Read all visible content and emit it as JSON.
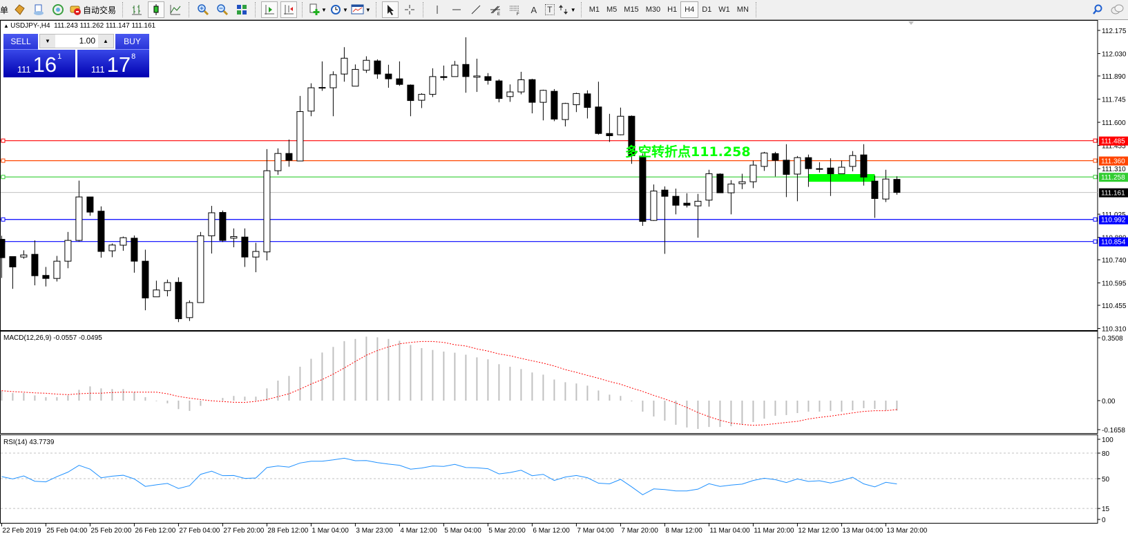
{
  "toolbar": {
    "menu_partial": "单",
    "auto_trading_label": "自动交易",
    "icons": [
      "market-watch-icon",
      "data-window-icon",
      "navigator-icon",
      "signals-icon",
      "auto-trading-icon",
      "bar-chart-icon",
      "candlestick-icon",
      "line-chart-icon",
      "zoom-in-icon",
      "zoom-out-icon",
      "tile-windows-icon",
      "auto-scroll-icon",
      "chart-shift-icon",
      "new-order-icon",
      "periods-icon",
      "templates-icon",
      "cursor-icon",
      "crosshair-icon",
      "vertical-line-icon",
      "horizontal-line-icon",
      "trendline-icon",
      "fibonacci-icon",
      "channel-icon",
      "text-icon",
      "text-label-icon",
      "arrows-icon",
      "search-icon",
      "chat-icon"
    ],
    "text_tool": "A",
    "label_tool": "T",
    "timeframes": [
      "M1",
      "M5",
      "M15",
      "M30",
      "H1",
      "H4",
      "D1",
      "W1",
      "MN"
    ],
    "selected_timeframe": "H4"
  },
  "chart": {
    "header": "USDJPY-,H4  111.243 111.262 111.147 111.161",
    "symbol": "USDJPY-",
    "timeframe": "H4",
    "ohlc_last": {
      "open": 111.243,
      "high": 111.262,
      "low": 111.147,
      "close": 111.161
    },
    "trade_panel": {
      "sell_label": "SELL",
      "buy_label": "BUY",
      "lot": "1.00",
      "sell_prefix": "111",
      "sell_big": "16",
      "sell_sup": "1",
      "buy_prefix": "111",
      "buy_big": "17",
      "buy_sup": "8",
      "panel_color": "#2030d8"
    },
    "annotation": {
      "text": "多空转折点111.258",
      "color": "#00ff00"
    },
    "highlight_zone": {
      "from_candle": 74,
      "to_candle": 80,
      "top": 111.276,
      "bottom": 111.228,
      "color": "#00ff00"
    }
  },
  "chart_data": {
    "type": "candlestick",
    "ylim": [
      110.3,
      112.23
    ],
    "price_ticks": [
      "112.175",
      "112.030",
      "111.890",
      "111.745",
      "111.600",
      "111.455",
      "111.310",
      "111.025",
      "110.880",
      "110.740",
      "110.595",
      "110.455",
      "110.310"
    ],
    "levels": [
      {
        "price": "111.485",
        "color": "#ff0000"
      },
      {
        "price": "111.360",
        "color": "#ff4500"
      },
      {
        "price": "111.258",
        "color": "#32cd32"
      },
      {
        "price": "110.992",
        "color": "#0000ff"
      },
      {
        "price": "110.854",
        "color": "#0000ff"
      }
    ],
    "bid": {
      "price": "111.161",
      "line_color": "#c0c0c0",
      "label_bg": "#000000"
    },
    "time_labels": [
      {
        "candle": 1,
        "label": "22 Feb 2019"
      },
      {
        "candle": 5,
        "label": "25 Feb 04:00"
      },
      {
        "candle": 9,
        "label": "25 Feb 20:00"
      },
      {
        "candle": 13,
        "label": "26 Feb 12:00"
      },
      {
        "candle": 17,
        "label": "27 Feb 04:00"
      },
      {
        "candle": 21,
        "label": "27 Feb 20:00"
      },
      {
        "candle": 25,
        "label": "28 Feb 12:00"
      },
      {
        "candle": 29,
        "label": "1 Mar 04:00"
      },
      {
        "candle": 33,
        "label": "3 Mar 23:00"
      },
      {
        "candle": 37,
        "label": "4 Mar 12:00"
      },
      {
        "candle": 41,
        "label": "5 Mar 04:00"
      },
      {
        "candle": 45,
        "label": "5 Mar 20:00"
      },
      {
        "candle": 49,
        "label": "6 Mar 12:00"
      },
      {
        "candle": 53,
        "label": "7 Mar 04:00"
      },
      {
        "candle": 57,
        "label": "7 Mar 20:00"
      },
      {
        "candle": 61,
        "label": "8 Mar 12:00"
      },
      {
        "candle": 65,
        "label": "11 Mar 04:00"
      },
      {
        "candle": 69,
        "label": "11 Mar 20:00"
      },
      {
        "candle": 73,
        "label": "12 Mar 12:00"
      },
      {
        "candle": 77,
        "label": "13 Mar 04:00"
      },
      {
        "candle": 81,
        "label": "13 Mar 20:00"
      }
    ],
    "ohlc": [
      [
        110.868,
        110.89,
        110.626,
        110.753
      ],
      [
        110.76,
        110.76,
        110.558,
        110.695
      ],
      [
        110.757,
        110.799,
        110.746,
        110.77
      ],
      [
        110.774,
        110.861,
        110.58,
        110.64
      ],
      [
        110.642,
        110.695,
        110.573,
        110.623
      ],
      [
        110.623,
        110.764,
        110.604,
        110.731
      ],
      [
        110.731,
        110.914,
        110.687,
        110.861
      ],
      [
        110.861,
        111.235,
        110.854,
        111.133
      ],
      [
        111.133,
        111.133,
        111.015,
        111.038
      ],
      [
        111.044,
        111.074,
        110.753,
        110.792
      ],
      [
        110.796,
        110.842,
        110.756,
        110.832
      ],
      [
        110.831,
        110.885,
        110.796,
        110.878
      ],
      [
        110.875,
        110.892,
        110.659,
        110.731
      ],
      [
        110.731,
        110.803,
        110.424,
        110.501
      ],
      [
        110.508,
        110.609,
        110.508,
        110.551
      ],
      [
        110.547,
        110.616,
        110.511,
        110.597
      ],
      [
        110.599,
        110.63,
        110.35,
        110.371
      ],
      [
        110.378,
        110.486,
        110.357,
        110.472
      ],
      [
        110.472,
        110.914,
        110.472,
        110.89
      ],
      [
        110.89,
        111.077,
        110.779,
        111.034
      ],
      [
        111.036,
        111.048,
        110.851,
        110.861
      ],
      [
        110.875,
        110.936,
        110.818,
        110.885
      ],
      [
        110.882,
        110.936,
        110.695,
        110.757
      ],
      [
        110.757,
        110.846,
        110.662,
        110.792
      ],
      [
        110.789,
        111.432,
        110.736,
        111.297
      ],
      [
        111.297,
        111.437,
        111.271,
        111.405
      ],
      [
        111.405,
        111.492,
        111.322,
        111.362
      ],
      [
        111.358,
        111.765,
        111.358,
        111.667
      ],
      [
        111.67,
        111.844,
        111.638,
        111.816
      ],
      [
        111.816,
        111.981,
        111.797,
        111.818
      ],
      [
        111.816,
        111.919,
        111.638,
        111.898
      ],
      [
        111.902,
        112.07,
        111.854,
        112.001
      ],
      [
        111.826,
        111.962,
        111.826,
        111.931
      ],
      [
        111.926,
        112.013,
        111.909,
        111.988
      ],
      [
        111.984,
        111.994,
        111.872,
        111.902
      ],
      [
        111.902,
        111.96,
        111.816,
        111.872
      ],
      [
        111.872,
        111.981,
        111.828,
        111.837
      ],
      [
        111.833,
        111.837,
        111.638,
        111.736
      ],
      [
        111.738,
        111.782,
        111.689,
        111.775
      ],
      [
        111.775,
        111.938,
        111.758,
        111.886
      ],
      [
        111.886,
        111.955,
        111.862,
        111.88
      ],
      [
        111.886,
        111.984,
        111.886,
        111.958
      ],
      [
        111.962,
        112.132,
        111.785,
        111.886
      ],
      [
        111.882,
        111.998,
        111.79,
        111.89
      ],
      [
        111.886,
        111.908,
        111.836,
        111.862
      ],
      [
        111.859,
        111.869,
        111.725,
        111.749
      ],
      [
        111.761,
        111.837,
        111.728,
        111.79
      ],
      [
        111.79,
        111.916,
        111.775,
        111.866
      ],
      [
        111.867,
        111.872,
        111.656,
        111.725
      ],
      [
        111.725,
        111.804,
        111.612,
        111.8
      ],
      [
        111.794,
        111.808,
        111.607,
        111.62
      ],
      [
        111.617,
        111.722,
        111.574,
        111.718
      ],
      [
        111.71,
        111.785,
        111.664,
        111.78
      ],
      [
        111.778,
        111.8,
        111.624,
        111.693
      ],
      [
        111.696,
        111.854,
        111.523,
        111.53
      ],
      [
        111.53,
        111.653,
        111.477,
        111.516
      ],
      [
        111.522,
        111.692,
        111.519,
        111.638
      ],
      [
        111.638,
        111.643,
        111.34,
        111.391
      ],
      [
        111.389,
        111.405,
        110.952,
        110.98
      ],
      [
        110.986,
        111.211,
        110.983,
        111.17
      ],
      [
        111.176,
        111.199,
        110.777,
        111.137
      ],
      [
        111.137,
        111.185,
        111.024,
        111.081
      ],
      [
        111.094,
        111.156,
        111.067,
        111.081
      ],
      [
        111.077,
        111.152,
        110.878,
        111.106
      ],
      [
        111.113,
        111.303,
        111.072,
        111.278
      ],
      [
        111.276,
        111.281,
        111.159,
        111.159
      ],
      [
        111.159,
        111.238,
        111.024,
        111.214
      ],
      [
        111.216,
        111.278,
        111.182,
        111.228
      ],
      [
        111.228,
        111.36,
        111.188,
        111.332
      ],
      [
        111.324,
        111.415,
        111.296,
        111.408
      ],
      [
        111.404,
        111.415,
        111.261,
        111.362
      ],
      [
        111.363,
        111.463,
        111.132,
        111.274
      ],
      [
        111.276,
        111.389,
        111.106,
        111.379
      ],
      [
        111.379,
        111.398,
        111.196,
        111.31
      ],
      [
        111.31,
        111.35,
        111.286,
        111.306
      ],
      [
        111.314,
        111.375,
        111.139,
        111.278
      ],
      [
        111.278,
        111.36,
        111.278,
        111.319
      ],
      [
        111.324,
        111.42,
        111.293,
        111.392
      ],
      [
        111.396,
        111.463,
        111.204,
        111.257
      ],
      [
        111.232,
        111.267,
        111.002,
        111.123
      ],
      [
        111.12,
        111.303,
        111.101,
        111.245
      ],
      [
        111.243,
        111.262,
        111.147,
        111.161
      ]
    ],
    "macd": {
      "label": "MACD(12,26,9) -0.0557 -0.0495",
      "ticks": [
        "0.3508",
        "0.00",
        "-0.1658"
      ],
      "ylim": [
        -0.1658,
        0.3508
      ],
      "hist_color": "#c0c0c0",
      "signal_color": "#ff0000",
      "main": [
        0.055,
        0.042,
        0.042,
        0.029,
        0.019,
        0.019,
        0.029,
        0.06,
        0.079,
        0.068,
        0.064,
        0.064,
        0.047,
        0.019,
        -0.003,
        -0.015,
        -0.047,
        -0.057,
        -0.029,
        -0.002,
        0.015,
        0.026,
        0.022,
        0.022,
        0.068,
        0.111,
        0.137,
        0.188,
        0.232,
        0.267,
        0.298,
        0.33,
        0.342,
        0.355,
        0.351,
        0.342,
        0.332,
        0.309,
        0.291,
        0.281,
        0.272,
        0.266,
        0.255,
        0.24,
        0.229,
        0.202,
        0.188,
        0.175,
        0.156,
        0.144,
        0.117,
        0.102,
        0.095,
        0.083,
        0.056,
        0.033,
        0.026,
        -0.004,
        -0.061,
        -0.088,
        -0.111,
        -0.134,
        -0.149,
        -0.157,
        -0.146,
        -0.146,
        -0.142,
        -0.134,
        -0.119,
        -0.1,
        -0.084,
        -0.08,
        -0.069,
        -0.061,
        -0.061,
        -0.057,
        -0.061,
        -0.054,
        -0.042,
        -0.046,
        -0.054,
        -0.0557
      ],
      "signal": [
        0.055,
        0.05,
        0.047,
        0.043,
        0.041,
        0.036,
        0.033,
        0.038,
        0.041,
        0.041,
        0.045,
        0.047,
        0.047,
        0.047,
        0.047,
        0.038,
        0.023,
        0.014,
        0.006,
        -0.001,
        -0.005,
        -0.009,
        -0.01,
        -0.004,
        0.006,
        0.022,
        0.038,
        0.064,
        0.092,
        0.117,
        0.147,
        0.181,
        0.217,
        0.252,
        0.278,
        0.298,
        0.315,
        0.323,
        0.328,
        0.328,
        0.323,
        0.31,
        0.303,
        0.287,
        0.275,
        0.259,
        0.249,
        0.234,
        0.221,
        0.208,
        0.192,
        0.172,
        0.157,
        0.14,
        0.124,
        0.106,
        0.091,
        0.07,
        0.051,
        0.029,
        0.009,
        -0.013,
        -0.038,
        -0.066,
        -0.089,
        -0.109,
        -0.124,
        -0.132,
        -0.137,
        -0.134,
        -0.128,
        -0.121,
        -0.115,
        -0.102,
        -0.093,
        -0.086,
        -0.077,
        -0.068,
        -0.06,
        -0.056,
        -0.056,
        -0.0495
      ]
    },
    "rsi": {
      "label": "RSI(14) 43.7739",
      "ticks": [
        "100",
        "80",
        "50",
        "15",
        "0"
      ],
      "levels": [
        80,
        50,
        15
      ],
      "ylim": [
        0,
        100
      ],
      "color": "#1e90ff",
      "values": [
        52.4,
        49.7,
        53.2,
        47.0,
        46.3,
        52.4,
        57.7,
        65.7,
        61.2,
        51.0,
        52.9,
        54.0,
        49.7,
        40.9,
        42.8,
        44.4,
        38.5,
        41.7,
        55.1,
        58.8,
        53.5,
        53.7,
        50.3,
        50.8,
        63.1,
        64.9,
        63.6,
        68.4,
        70.5,
        70.5,
        72.1,
        74.0,
        71.1,
        71.3,
        68.9,
        67.1,
        65.7,
        61.2,
        62.5,
        64.9,
        64.4,
        66.8,
        63.1,
        62.8,
        61.7,
        55.6,
        57.2,
        59.9,
        53.5,
        55.1,
        47.9,
        51.9,
        53.7,
        51.1,
        44.7,
        43.9,
        49.2,
        40.4,
        31.1,
        38.0,
        37.2,
        35.6,
        35.6,
        37.7,
        44.1,
        40.9,
        42.5,
        43.6,
        47.9,
        50.5,
        48.9,
        45.5,
        49.7,
        46.8,
        47.6,
        44.9,
        47.9,
        51.6,
        43.9,
        40.4,
        45.7,
        43.7739
      ]
    }
  }
}
